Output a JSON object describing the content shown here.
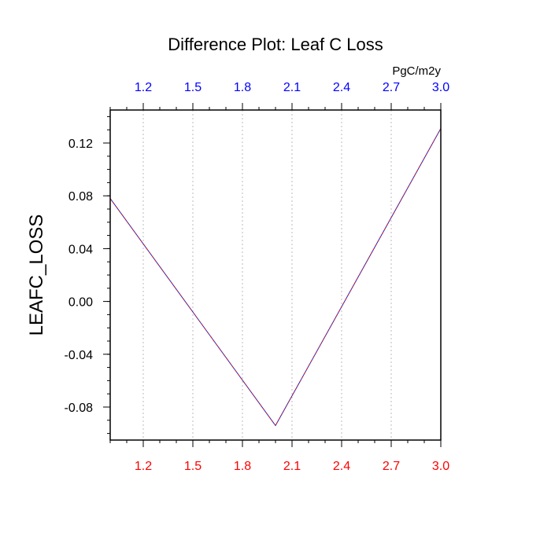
{
  "chart_data": {
    "type": "line",
    "title": "Difference Plot: Leaf C Loss",
    "ylabel": "LEAFC_LOSS",
    "top_axis_unit": "PgC/m2y",
    "xlim": [
      1.0,
      3.0
    ],
    "ylim": [
      -0.105,
      0.145
    ],
    "x_ticks": [
      1.2,
      1.5,
      1.8,
      2.1,
      2.4,
      2.7,
      3.0
    ],
    "x_tick_labels": [
      "1.2",
      "1.5",
      "1.8",
      "2.1",
      "2.4",
      "2.7",
      "3.0"
    ],
    "y_ticks": [
      -0.08,
      -0.04,
      0.0,
      0.04,
      0.08,
      0.12
    ],
    "y_tick_labels": [
      "-0.08",
      "-0.04",
      "0.00",
      "0.04",
      "0.08",
      "0.12"
    ],
    "grid": "vertical dotted",
    "series": [
      {
        "x": [
          1.0,
          2.0,
          3.0
        ],
        "y": [
          0.078,
          -0.094,
          0.131
        ],
        "color": "#2222cc",
        "dash_color": "#cc2222",
        "style": "dashed"
      }
    ],
    "colors": {
      "bottom_tick_labels": "#ff0000",
      "top_tick_labels": "#0000ff",
      "axis": "#000000",
      "grid": "#bbbbbb"
    }
  }
}
